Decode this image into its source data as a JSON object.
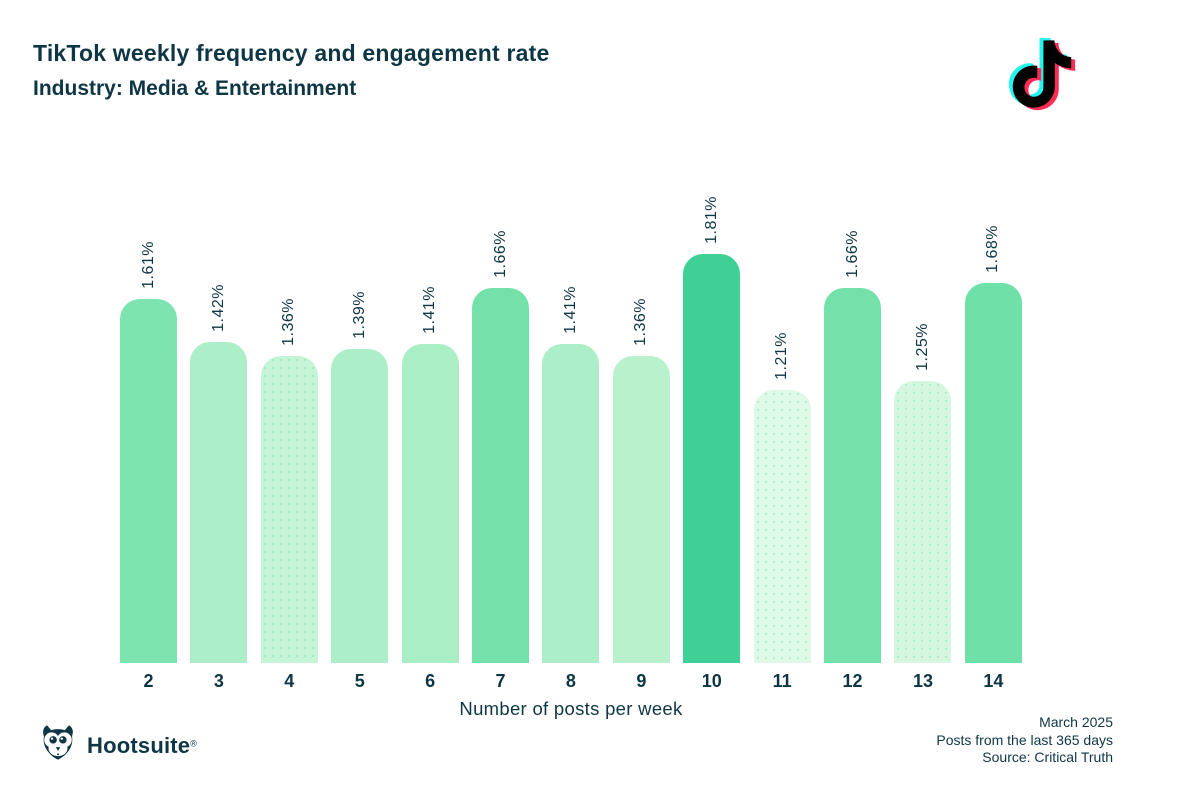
{
  "header": {
    "title": "TikTok weekly frequency and engagement rate",
    "subtitle": "Industry: Media & Entertainment"
  },
  "chart_data": {
    "type": "bar",
    "title": "TikTok weekly frequency and engagement rate",
    "subtitle": "Industry: Media & Entertainment",
    "categories": [
      "2",
      "3",
      "4",
      "5",
      "6",
      "7",
      "8",
      "9",
      "10",
      "11",
      "12",
      "13",
      "14"
    ],
    "values": [
      1.61,
      1.42,
      1.36,
      1.39,
      1.41,
      1.66,
      1.41,
      1.36,
      1.81,
      1.21,
      1.66,
      1.25,
      1.68
    ],
    "value_labels": [
      "1.61%",
      "1.42%",
      "1.36%",
      "1.39%",
      "1.41%",
      "1.66%",
      "1.41%",
      "1.36%",
      "1.81%",
      "1.21%",
      "1.66%",
      "1.25%",
      "1.68%"
    ],
    "bar_colors": [
      "#7de3af",
      "#aceec7",
      "#c6f4d6",
      "#abeec8",
      "#aaeec6",
      "#74e1aa",
      "#aceec7",
      "#b9f1cd",
      "#3ed096",
      "#def9e5",
      "#74e1aa",
      "#d6f7df",
      "#6fe0a8"
    ],
    "bar_textures": [
      "solid",
      "solid",
      "dotted",
      "solid",
      "solid",
      "solid",
      "solid",
      "solid",
      "solid",
      "dotted",
      "solid",
      "dotted",
      "solid"
    ],
    "xlabel": "Number of posts per week",
    "ylabel": "",
    "ylim": [
      0,
      1.81
    ],
    "grid": false,
    "value_labels_rotated": true,
    "legend": null
  },
  "footer": {
    "brand": "Hootsuite",
    "brand_mark": "®",
    "notes": [
      "March 2025",
      "Posts from the last 365 days",
      "Source: Critical Truth"
    ]
  },
  "icons": {
    "top_right": "tiktok-logo-icon",
    "bottom_left": "hootsuite-owl-icon"
  },
  "colors": {
    "text": "#0e3644",
    "background": "#ffffff",
    "tiktok_cyan": "#25f4ee",
    "tiktok_red": "#fe2c55",
    "tiktok_black": "#010101"
  }
}
